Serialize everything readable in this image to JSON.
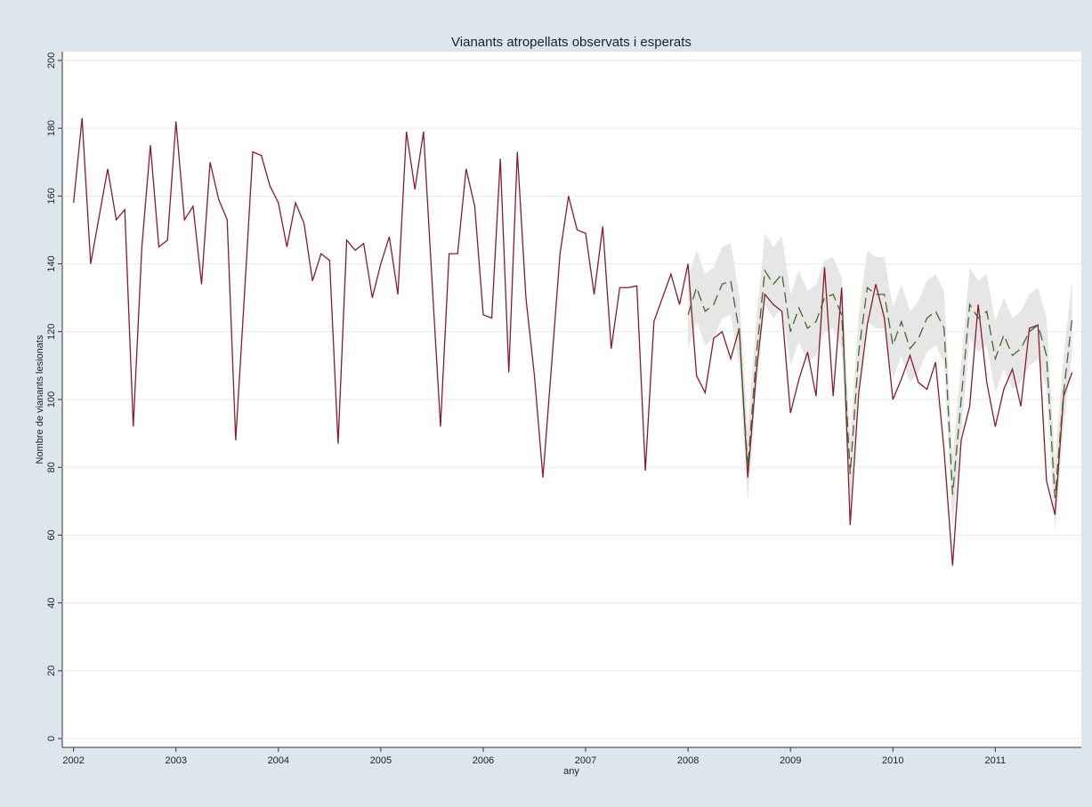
{
  "chart_data": {
    "type": "line",
    "title": "Vianants atropellats observats i esperats",
    "xlabel": "any",
    "ylabel": "Nombre de vianants lesionats",
    "x": [
      2002,
      2002.083,
      2002.167,
      2002.25,
      2002.333,
      2002.417,
      2002.5,
      2002.583,
      2002.667,
      2002.75,
      2002.833,
      2002.917,
      2003,
      2003.083,
      2003.167,
      2003.25,
      2003.333,
      2003.417,
      2003.5,
      2003.583,
      2003.667,
      2003.75,
      2003.833,
      2003.917,
      2004,
      2004.083,
      2004.167,
      2004.25,
      2004.333,
      2004.417,
      2004.5,
      2004.583,
      2004.667,
      2004.75,
      2004.833,
      2004.917,
      2005,
      2005.083,
      2005.167,
      2005.25,
      2005.333,
      2005.417,
      2005.5,
      2005.583,
      2005.667,
      2005.75,
      2005.833,
      2005.917,
      2006,
      2006.083,
      2006.167,
      2006.25,
      2006.333,
      2006.417,
      2006.5,
      2006.583,
      2006.667,
      2006.75,
      2006.833,
      2006.917,
      2007,
      2007.083,
      2007.167,
      2007.25,
      2007.333,
      2007.417,
      2007.5,
      2007.583,
      2007.667,
      2007.75,
      2007.833,
      2007.917,
      2008,
      2008.083,
      2008.167,
      2008.25,
      2008.333,
      2008.417,
      2008.5,
      2008.583,
      2008.667,
      2008.75,
      2008.833,
      2008.917,
      2009,
      2009.083,
      2009.167,
      2009.25,
      2009.333,
      2009.417,
      2009.5,
      2009.583,
      2009.667,
      2009.75,
      2009.833,
      2009.917,
      2010,
      2010.083,
      2010.167,
      2010.25,
      2010.333,
      2010.417,
      2010.5,
      2010.583,
      2010.667,
      2010.75,
      2010.833,
      2010.917,
      2011,
      2011.083,
      2011.167,
      2011.25,
      2011.333,
      2011.417,
      2011.5,
      2011.583,
      2011.667,
      2011.75
    ],
    "band": {
      "color": "#e6e6e6",
      "upper": [
        null,
        null,
        null,
        null,
        null,
        null,
        null,
        null,
        null,
        null,
        null,
        null,
        null,
        null,
        null,
        null,
        null,
        null,
        null,
        null,
        null,
        null,
        null,
        null,
        null,
        null,
        null,
        null,
        null,
        null,
        null,
        null,
        null,
        null,
        null,
        null,
        null,
        null,
        null,
        null,
        null,
        null,
        null,
        null,
        null,
        null,
        null,
        null,
        null,
        null,
        null,
        null,
        null,
        null,
        null,
        null,
        null,
        null,
        null,
        null,
        null,
        null,
        null,
        null,
        null,
        null,
        null,
        null,
        null,
        null,
        null,
        null,
        136,
        144,
        137,
        139,
        145,
        146,
        131,
        91,
        124,
        149,
        145,
        148,
        131,
        138,
        132,
        134,
        141,
        142,
        136,
        89,
        125,
        144,
        142,
        142,
        127,
        134,
        126,
        129,
        135,
        137,
        132,
        83,
        111,
        139,
        135,
        137,
        123,
        130,
        124,
        126,
        131,
        133,
        124,
        82,
        113,
        135
      ],
      "lower": [
        null,
        null,
        null,
        null,
        null,
        null,
        null,
        null,
        null,
        null,
        null,
        null,
        null,
        null,
        null,
        null,
        null,
        null,
        null,
        null,
        null,
        null,
        null,
        null,
        null,
        null,
        null,
        null,
        null,
        null,
        null,
        null,
        null,
        null,
        null,
        null,
        null,
        null,
        null,
        null,
        null,
        null,
        null,
        null,
        null,
        null,
        null,
        null,
        null,
        null,
        null,
        null,
        null,
        null,
        null,
        null,
        null,
        null,
        null,
        null,
        null,
        null,
        null,
        null,
        null,
        null,
        null,
        null,
        null,
        null,
        null,
        null,
        115,
        123,
        116,
        118,
        124,
        125,
        110,
        70,
        103,
        128,
        124,
        127,
        110,
        117,
        111,
        113,
        120,
        121,
        115,
        68,
        104,
        123,
        121,
        121,
        106,
        113,
        105,
        108,
        114,
        116,
        111,
        62,
        90,
        118,
        114,
        116,
        102,
        109,
        103,
        105,
        110,
        112,
        103,
        61,
        92,
        114
      ]
    },
    "series": [
      {
        "color": "#8b1a2b",
        "dash": false,
        "values": [
          158,
          183,
          140,
          154,
          168,
          153,
          156,
          92,
          145,
          175,
          145,
          147,
          182,
          153,
          157,
          134,
          170,
          159,
          153,
          88,
          130,
          173,
          172,
          163,
          158,
          145,
          158,
          152,
          135,
          143,
          141,
          87,
          147,
          144,
          146,
          130,
          140,
          148,
          131,
          179,
          162,
          179,
          135,
          92,
          143,
          143,
          168,
          157,
          125,
          124,
          171,
          108,
          173,
          130,
          107,
          77,
          110,
          143,
          160,
          150,
          149,
          131,
          151,
          115,
          133,
          133,
          133.5,
          79,
          123,
          130,
          137,
          128,
          140,
          107,
          102,
          118,
          120,
          112,
          121,
          77,
          108,
          131,
          128,
          126,
          96,
          106,
          114,
          101,
          139,
          101,
          133,
          63,
          102,
          122,
          134,
          124,
          100,
          106,
          113,
          105,
          103,
          111,
          85,
          51,
          88,
          98,
          128,
          105,
          92,
          103,
          109,
          98,
          121,
          122,
          76,
          66,
          101,
          108
        ]
      },
      {
        "color": "#3d6b2a",
        "dash": true,
        "values": [
          null,
          null,
          null,
          null,
          null,
          null,
          null,
          null,
          null,
          null,
          null,
          null,
          null,
          null,
          null,
          null,
          null,
          null,
          null,
          null,
          null,
          null,
          null,
          null,
          null,
          null,
          null,
          null,
          null,
          null,
          null,
          null,
          null,
          null,
          null,
          null,
          null,
          null,
          null,
          null,
          null,
          null,
          null,
          null,
          null,
          null,
          null,
          null,
          null,
          null,
          null,
          null,
          null,
          null,
          null,
          null,
          null,
          null,
          null,
          null,
          null,
          null,
          null,
          null,
          null,
          null,
          null,
          null,
          null,
          null,
          null,
          null,
          125,
          133,
          126,
          128,
          134,
          135,
          120,
          80,
          113,
          138,
          134,
          137,
          120,
          127,
          121,
          123,
          130,
          131,
          125,
          78,
          114,
          133,
          131,
          131,
          116,
          123,
          115,
          118,
          124,
          126,
          121,
          72,
          100,
          128,
          124,
          126,
          112,
          119,
          113,
          115,
          120,
          122,
          113,
          71,
          102,
          124
        ]
      }
    ],
    "xlim": [
      2001.89,
      2011.84
    ],
    "xticks": [
      2002,
      2003,
      2004,
      2005,
      2006,
      2007,
      2008,
      2009,
      2010,
      2011
    ],
    "ylim": [
      -2.6,
      202.6
    ],
    "yticks": [
      0,
      20,
      40,
      60,
      80,
      100,
      120,
      140,
      160,
      180,
      200
    ],
    "grid": true
  }
}
